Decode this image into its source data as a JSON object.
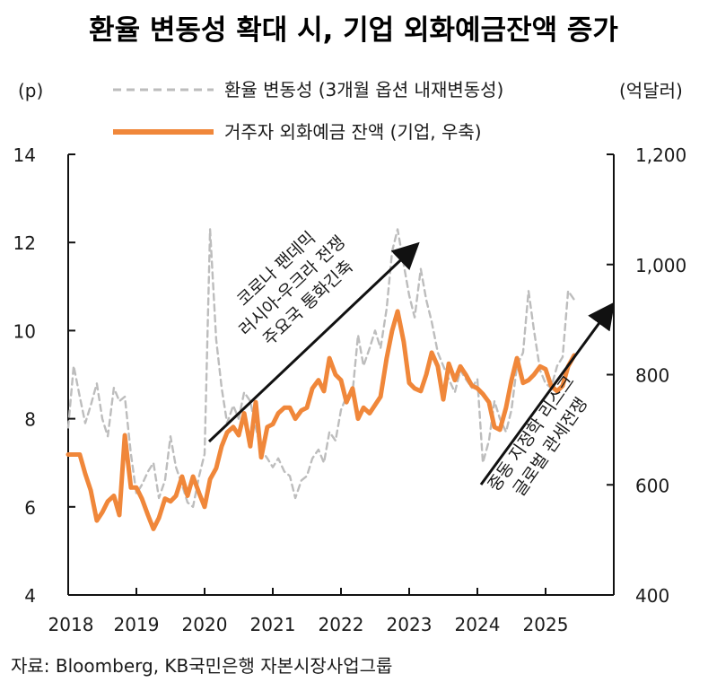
{
  "title": "환율 변동성 확대 시, 기업 외화예금잔액 증가",
  "source": "자료: Bloomberg, KB국민은행 자본시장사업그룹",
  "annotations": [
    {
      "lines": [
        "코로나 팬데믹",
        "러시아-우크라 전쟁",
        "주요국 통화긴축"
      ]
    },
    {
      "lines": [
        "중동 지정학 리스크",
        "글로벌 관세전쟁"
      ]
    }
  ],
  "chart_data": {
    "type": "line",
    "x_ticks": [
      "2018",
      "2019",
      "2020",
      "2021",
      "2022",
      "2023",
      "2024",
      "2025"
    ],
    "y_left": {
      "label": "(p)",
      "ticks": [
        "4",
        "6",
        "8",
        "10",
        "12",
        "14"
      ],
      "range": [
        4,
        14
      ]
    },
    "y_right": {
      "label": "(억달러)",
      "ticks": [
        "400",
        "600",
        "800",
        "1,000",
        "1,200"
      ],
      "range": [
        400,
        1200
      ]
    },
    "series": [
      {
        "name": "환율 변동성 (3개월 옵션 내재변동성)",
        "axis": "left",
        "style": "dashed",
        "color": "#bdbdbd",
        "x": [
          2018.0,
          2018.08,
          2018.17,
          2018.25,
          2018.33,
          2018.42,
          2018.5,
          2018.58,
          2018.67,
          2018.75,
          2018.83,
          2018.92,
          2019.0,
          2019.08,
          2019.17,
          2019.25,
          2019.33,
          2019.42,
          2019.5,
          2019.58,
          2019.67,
          2019.75,
          2019.83,
          2019.92,
          2020.0,
          2020.08,
          2020.17,
          2020.25,
          2020.33,
          2020.42,
          2020.5,
          2020.58,
          2020.67,
          2020.75,
          2020.83,
          2020.92,
          2021.0,
          2021.08,
          2021.17,
          2021.25,
          2021.33,
          2021.42,
          2021.5,
          2021.58,
          2021.67,
          2021.75,
          2021.83,
          2021.92,
          2022.0,
          2022.08,
          2022.17,
          2022.25,
          2022.33,
          2022.42,
          2022.5,
          2022.58,
          2022.67,
          2022.75,
          2022.83,
          2022.92,
          2023.0,
          2023.08,
          2023.17,
          2023.25,
          2023.33,
          2023.42,
          2023.5,
          2023.58,
          2023.67,
          2023.75,
          2023.83,
          2023.92,
          2024.0,
          2024.08,
          2024.17,
          2024.25,
          2024.33,
          2024.42,
          2024.5,
          2024.58,
          2024.67,
          2024.75,
          2024.83,
          2024.92,
          2025.0,
          2025.08,
          2025.17,
          2025.25,
          2025.33,
          2025.42
        ],
        "values": [
          7.8,
          9.2,
          8.5,
          7.9,
          8.3,
          8.8,
          8.0,
          7.6,
          8.7,
          8.4,
          8.5,
          7.2,
          6.3,
          6.5,
          6.8,
          7.0,
          6.2,
          6.6,
          7.6,
          6.9,
          6.5,
          6.1,
          6.0,
          6.7,
          7.2,
          12.3,
          9.8,
          8.7,
          7.9,
          8.3,
          8.0,
          8.6,
          8.4,
          7.8,
          7.3,
          7.1,
          6.9,
          7.1,
          6.8,
          6.7,
          6.2,
          6.6,
          6.7,
          7.1,
          7.3,
          7.0,
          7.7,
          7.5,
          8.2,
          8.5,
          8.6,
          9.9,
          9.2,
          9.6,
          10.0,
          9.6,
          10.5,
          11.8,
          12.3,
          11.5,
          10.8,
          10.3,
          11.4,
          10.7,
          10.2,
          9.5,
          9.2,
          8.9,
          8.6,
          9.1,
          8.9,
          8.7,
          8.9,
          7.0,
          7.5,
          8.4,
          8.0,
          7.7,
          8.2,
          9.2,
          9.5,
          10.9,
          10.0,
          9.1,
          8.8,
          8.7,
          9.2,
          9.4,
          10.9,
          10.7
        ]
      },
      {
        "name": "거주자 외화예금 잔액 (기업, 우축)",
        "axis": "right",
        "style": "solid",
        "color": "#f0873a",
        "x": [
          2018.0,
          2018.08,
          2018.17,
          2018.25,
          2018.33,
          2018.42,
          2018.5,
          2018.58,
          2018.67,
          2018.75,
          2018.83,
          2018.92,
          2019.0,
          2019.08,
          2019.17,
          2019.25,
          2019.33,
          2019.42,
          2019.5,
          2019.58,
          2019.67,
          2019.75,
          2019.83,
          2019.92,
          2020.0,
          2020.08,
          2020.17,
          2020.25,
          2020.33,
          2020.42,
          2020.5,
          2020.58,
          2020.67,
          2020.75,
          2020.83,
          2020.92,
          2021.0,
          2021.08,
          2021.17,
          2021.25,
          2021.33,
          2021.42,
          2021.5,
          2021.58,
          2021.67,
          2021.75,
          2021.83,
          2021.92,
          2022.0,
          2022.08,
          2022.17,
          2022.25,
          2022.33,
          2022.42,
          2022.5,
          2022.58,
          2022.67,
          2022.75,
          2022.83,
          2022.92,
          2023.0,
          2023.08,
          2023.17,
          2023.25,
          2023.33,
          2023.42,
          2023.5,
          2023.58,
          2023.67,
          2023.75,
          2023.83,
          2023.92,
          2024.0,
          2024.08,
          2024.17,
          2024.25,
          2024.33,
          2024.42,
          2024.5,
          2024.58,
          2024.67,
          2024.75,
          2024.83,
          2024.92,
          2025.0,
          2025.08,
          2025.17,
          2025.25,
          2025.33,
          2025.42
        ],
        "values": [
          655,
          655,
          655,
          620,
          590,
          535,
          550,
          570,
          580,
          545,
          690,
          595,
          595,
          575,
          545,
          520,
          540,
          575,
          570,
          580,
          615,
          580,
          615,
          585,
          560,
          610,
          630,
          670,
          695,
          705,
          690,
          730,
          670,
          750,
          650,
          705,
          710,
          730,
          740,
          740,
          720,
          735,
          740,
          775,
          790,
          770,
          830,
          800,
          790,
          750,
          775,
          720,
          740,
          730,
          745,
          760,
          830,
          880,
          915,
          860,
          785,
          775,
          770,
          800,
          840,
          815,
          755,
          820,
          790,
          815,
          800,
          780,
          775,
          765,
          750,
          705,
          700,
          740,
          790,
          830,
          785,
          790,
          800,
          815,
          810,
          780,
          770,
          780,
          815,
          835
        ]
      }
    ]
  }
}
